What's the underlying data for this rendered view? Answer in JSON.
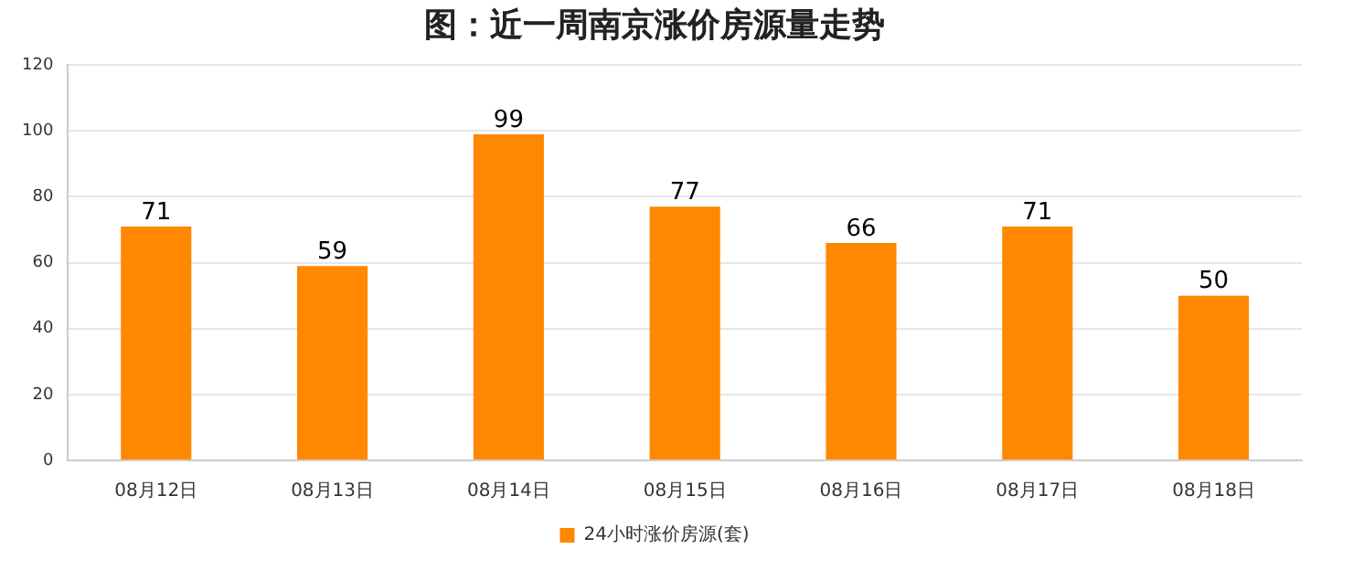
{
  "chart_data": {
    "type": "bar",
    "title": "图：近一周南京涨价房源量走势",
    "categories": [
      "08月12日",
      "08月13日",
      "08月14日",
      "08月15日",
      "08月16日",
      "08月17日",
      "08月18日"
    ],
    "series": [
      {
        "name": "24小时涨价房源(套)",
        "color": "#ff8800",
        "values": [
          71,
          59,
          99,
          77,
          66,
          71,
          50
        ]
      }
    ],
    "ylim": [
      0,
      120
    ],
    "yticks": [
      0,
      20,
      40,
      60,
      80,
      100,
      120
    ],
    "grid": "y",
    "legend": "bottom",
    "data_labels": true
  }
}
